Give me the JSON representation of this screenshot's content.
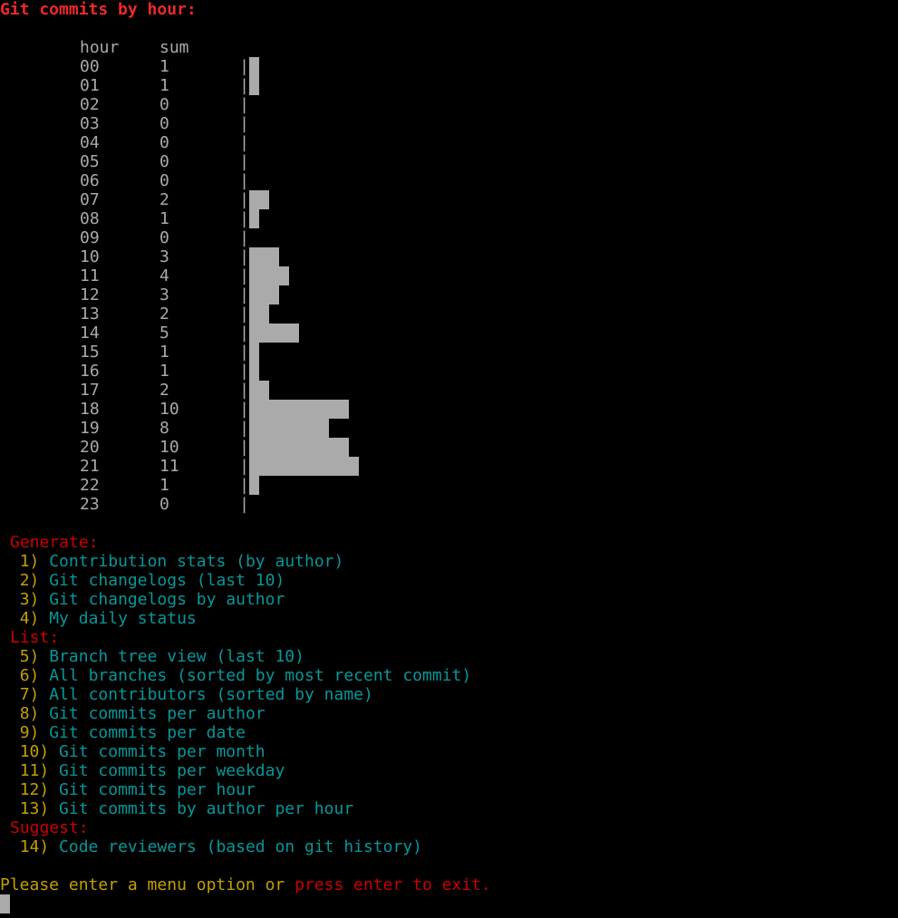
{
  "title": "Git commits by hour:",
  "chart_data": {
    "type": "bar",
    "orientation": "horizontal",
    "columns": [
      "hour",
      "sum"
    ],
    "categories": [
      "00",
      "01",
      "02",
      "03",
      "04",
      "05",
      "06",
      "07",
      "08",
      "09",
      "10",
      "11",
      "12",
      "13",
      "14",
      "15",
      "16",
      "17",
      "18",
      "19",
      "20",
      "21",
      "22",
      "23"
    ],
    "values": [
      1,
      1,
      0,
      0,
      0,
      0,
      0,
      2,
      1,
      0,
      3,
      4,
      3,
      2,
      5,
      1,
      1,
      2,
      10,
      8,
      10,
      11,
      1,
      0
    ],
    "bar_color": "#aaaaaa"
  },
  "menu": {
    "sections": [
      {
        "heading": "Generate:",
        "items": [
          {
            "num": "1)",
            "label": "Contribution stats (by author)"
          },
          {
            "num": "2)",
            "label": "Git changelogs (last 10)"
          },
          {
            "num": "3)",
            "label": "Git changelogs by author"
          },
          {
            "num": "4)",
            "label": "My daily status"
          }
        ]
      },
      {
        "heading": "List:",
        "items": [
          {
            "num": "5)",
            "label": "Branch tree view (last 10)"
          },
          {
            "num": "6)",
            "label": "All branches (sorted by most recent commit)"
          },
          {
            "num": "7)",
            "label": "All contributors (sorted by name)"
          },
          {
            "num": "8)",
            "label": "Git commits per author"
          },
          {
            "num": "9)",
            "label": "Git commits per date"
          },
          {
            "num": "10)",
            "label": "Git commits per month"
          },
          {
            "num": "11)",
            "label": "Git commits per weekday"
          },
          {
            "num": "12)",
            "label": "Git commits per hour"
          },
          {
            "num": "13)",
            "label": "Git commits by author per hour"
          }
        ]
      },
      {
        "heading": "Suggest:",
        "items": [
          {
            "num": "14)",
            "label": "Code reviewers (based on git history)"
          }
        ]
      }
    ]
  },
  "prompt": {
    "text": "Please enter a menu option or ",
    "exit_text": "press enter to exit."
  },
  "colors": {
    "title": "#ef2929",
    "heading": "#cc0000",
    "number": "#c4a000",
    "option": "#06989a",
    "text": "#aaaaaa",
    "background": "#000000"
  }
}
